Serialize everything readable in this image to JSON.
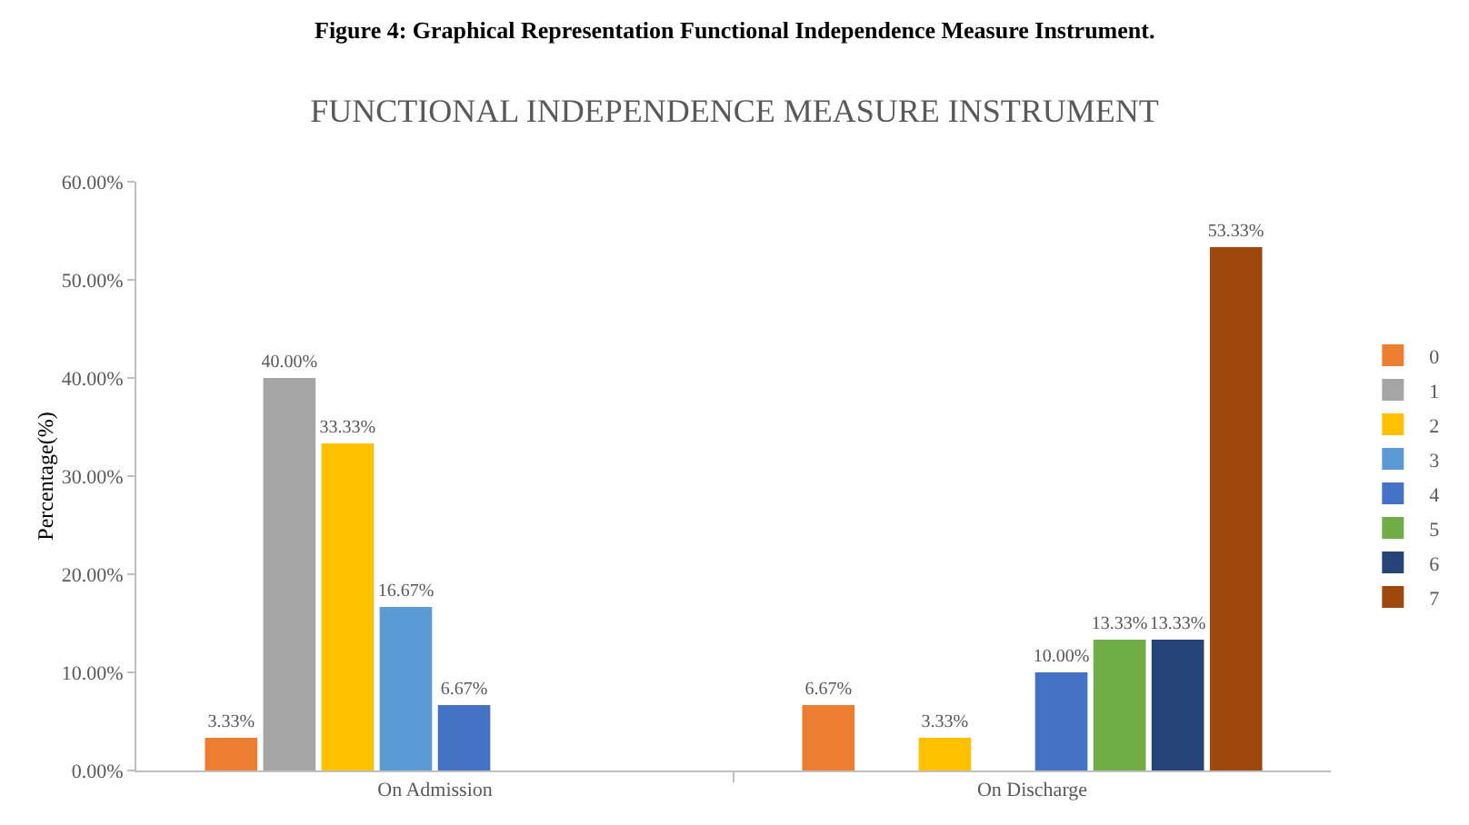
{
  "chart_data": {
    "type": "bar",
    "title": "FUNCTIONAL INDEPENDENCE MEASURE INSTRUMENT",
    "ylabel": "Percentage(%)",
    "categories": [
      "On Admission",
      "On Discharge"
    ],
    "series": [
      {
        "name": "0",
        "color": "#ed7d31",
        "values": [
          3.33,
          6.67
        ],
        "value_labels": [
          "3.33%",
          "6.67%"
        ]
      },
      {
        "name": "1",
        "color": "#a5a5a5",
        "values": [
          40,
          0
        ],
        "value_labels": [
          "40.00%",
          null
        ]
      },
      {
        "name": "2",
        "color": "#ffc000",
        "values": [
          33.33,
          3.33
        ],
        "value_labels": [
          "33.33%",
          "3.33%"
        ]
      },
      {
        "name": "3",
        "color": "#5b9bd5",
        "values": [
          16.67,
          0
        ],
        "value_labels": [
          "16.67%",
          null
        ]
      },
      {
        "name": "4",
        "color": "#4472c4",
        "values": [
          6.67,
          10
        ],
        "value_labels": [
          "6.67%",
          "10.00%"
        ]
      },
      {
        "name": "5",
        "color": "#70ad47",
        "values": [
          0,
          13.33
        ],
        "value_labels": [
          null,
          "13.33%"
        ]
      },
      {
        "name": "6",
        "color": "#264478",
        "values": [
          0,
          13.33
        ],
        "value_labels": [
          null,
          "13.33%"
        ]
      },
      {
        "name": "7",
        "color": "#9e480e",
        "values": [
          0,
          53.33
        ],
        "value_labels": [
          null,
          "53.33%"
        ]
      }
    ],
    "ylim": [
      0,
      60
    ],
    "yticks": [
      {
        "value": 0,
        "label": "0.00%"
      },
      {
        "value": 10,
        "label": "10.00%"
      },
      {
        "value": 20,
        "label": "20.00%"
      },
      {
        "value": 30,
        "label": "30.00%"
      },
      {
        "value": 40,
        "label": "40.00%"
      },
      {
        "value": 50,
        "label": "50.00%"
      },
      {
        "value": 60,
        "label": "60.00%"
      }
    ],
    "legend": "right",
    "annotations": [
      "Figure 4: Graphical Representation Functional Independence Measure Instrument."
    ]
  }
}
